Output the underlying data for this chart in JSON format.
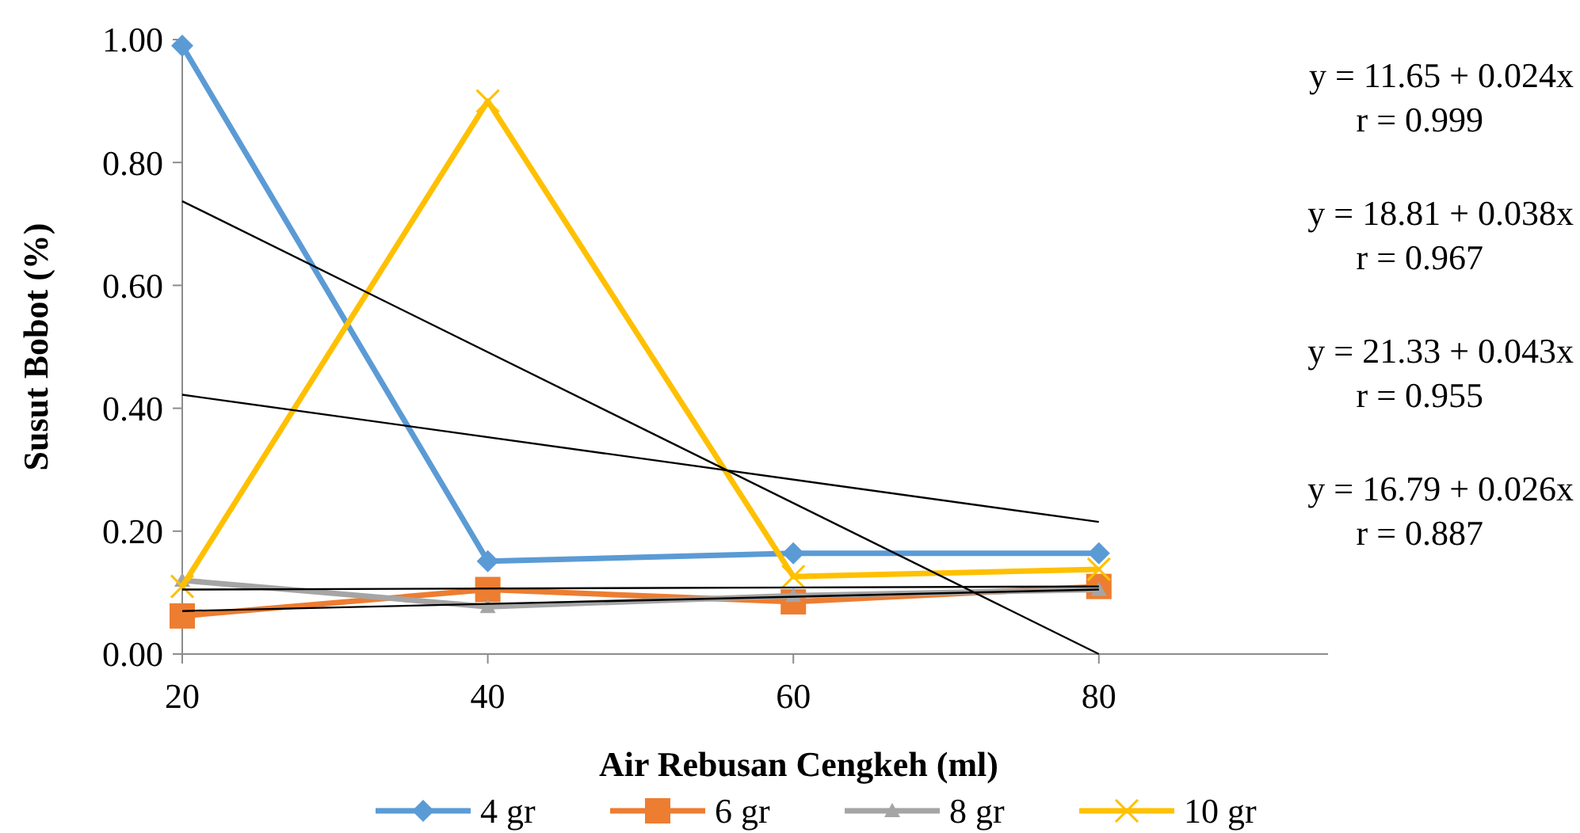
{
  "chart_data": {
    "type": "line",
    "xlabel": "Air Rebusan Cengkeh (ml)",
    "ylabel": "Susut Bobot (%)",
    "xlim": [
      20,
      95
    ],
    "xticks": [
      20,
      40,
      60,
      80
    ],
    "ylim": [
      0,
      1
    ],
    "yticks": [
      {
        "value": 0,
        "label": "0.00"
      },
      {
        "value": 0.2,
        "label": "0.20"
      },
      {
        "value": 0.4,
        "label": "0.40"
      },
      {
        "value": 0.6,
        "label": "0.60"
      },
      {
        "value": 0.8,
        "label": "0.80"
      },
      {
        "value": 1,
        "label": "1.00"
      }
    ],
    "grid": false,
    "legend": "bottom",
    "series": [
      {
        "name": "4 gr",
        "color": "#5b9bd5",
        "marker": "diamond",
        "x": [
          20,
          40,
          60,
          80
        ],
        "values": [
          0.99,
          0.151,
          0.164,
          0.164
        ]
      },
      {
        "name": "6 gr",
        "color": "#ed7d31",
        "marker": "square",
        "x": [
          20,
          40,
          60,
          80
        ],
        "values": [
          0.062,
          0.105,
          0.085,
          0.11
        ]
      },
      {
        "name": "8 gr",
        "color": "#a5a5a5",
        "marker": "triangle",
        "x": [
          20,
          40,
          60,
          80
        ],
        "values": [
          0.12,
          0.077,
          0.095,
          0.105
        ]
      },
      {
        "name": "10 gr",
        "color": "#ffc000",
        "marker": "cross",
        "x": [
          20,
          40,
          60,
          80
        ],
        "values": [
          0.11,
          0.9,
          0.126,
          0.138
        ]
      },
      {
        "color": "#000000",
        "marker": "none",
        "x": [
          20,
          80
        ],
        "values": [
          0.737,
          0
        ]
      },
      {
        "color": "#000000",
        "marker": "none",
        "x": [
          20,
          80
        ],
        "values": [
          0.07,
          0.105
        ]
      },
      {
        "color": "#000000",
        "marker": "none",
        "x": [
          20,
          80
        ],
        "values": [
          0.105,
          0.11
        ]
      },
      {
        "color": "#000000",
        "marker": "none",
        "x": [
          20,
          80
        ],
        "values": [
          0.422,
          0.215
        ]
      }
    ],
    "annotations": [
      "y =  11.65 + 0.024x",
      "r = 0.999",
      "y =  18.81 + 0.038x",
      "r = 0.967",
      "y =  21.33 + 0.043x",
      "r = 0.955",
      "y =  16.79 + 0.026x",
      "r = 0.887"
    ]
  }
}
